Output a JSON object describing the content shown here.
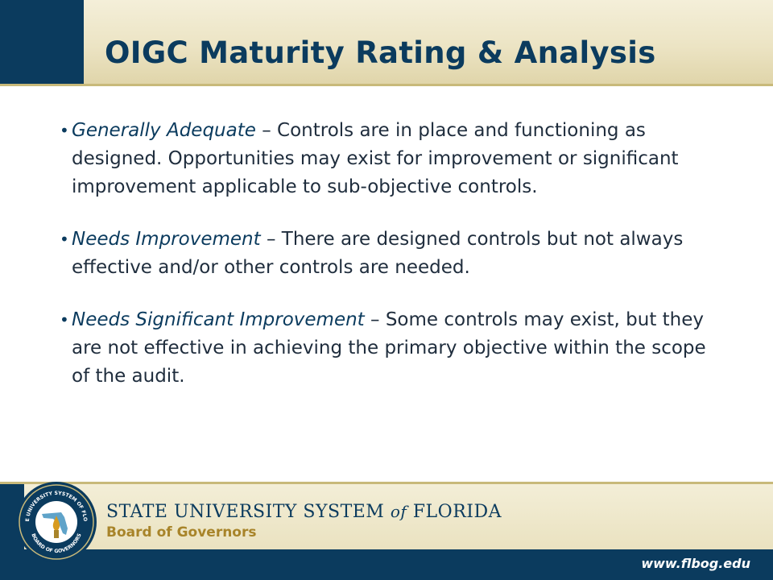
{
  "slide": {
    "title": "OIGC Maturity Rating & Analysis",
    "bullets": [
      {
        "term": "Generally Adequate",
        "separator": " – ",
        "text": "Controls are in place and functioning as designed.  Opportunities may exist for improvement or significant improvement applicable to sub-objective controls."
      },
      {
        "term": "Needs Improvement",
        "separator": " – ",
        "text": "There are designed controls but not always effective and/or other controls are needed."
      },
      {
        "term": "Needs Significant Improvement",
        "separator": " – ",
        "text": "Some controls may exist, but they are not effective in achieving the primary objective within the scope of the audit."
      }
    ]
  },
  "footer": {
    "org_name_main": "STATE UNIVERSITY SYSTEM",
    "org_name_of": "of",
    "org_name_end": "FLORIDA",
    "org_sub": "Board of Governors",
    "url": "www.flbog.edu",
    "seal": {
      "ring_text_top": "STATE UNIVERSITY SYSTEM OF FLORIDA",
      "ring_text_bottom": "BOARD OF GOVERNORS"
    }
  },
  "colors": {
    "navy": "#0b3b5e",
    "gold": "#c8b97a",
    "cream": "#ece4c4",
    "text": "#1f2d3d",
    "accent_gold": "#a8842a"
  }
}
